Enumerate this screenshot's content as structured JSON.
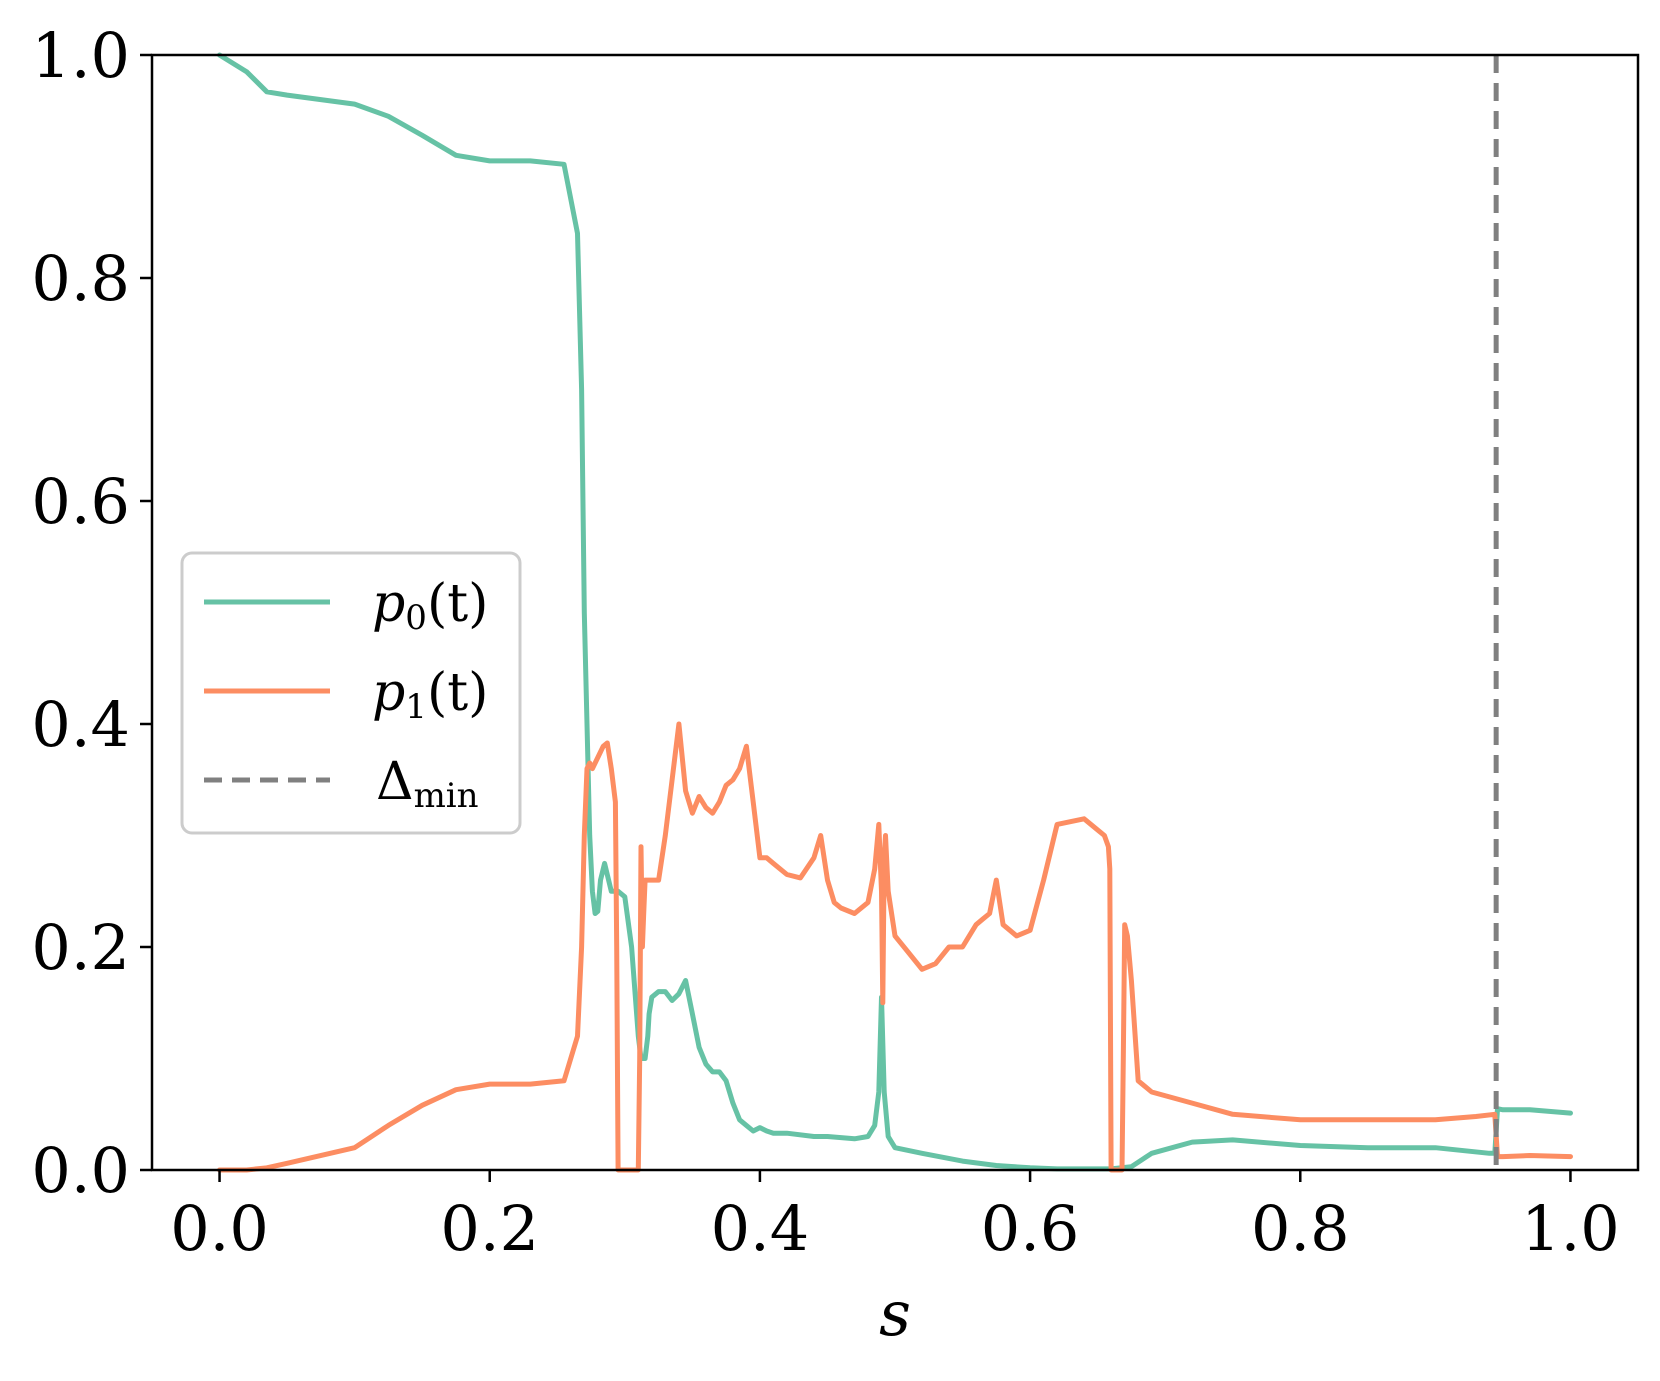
{
  "chart_data": {
    "type": "line",
    "xlabel": "s",
    "ylabel": "",
    "xlim": [
      -0.05,
      1.05
    ],
    "ylim": [
      0.0,
      1.0
    ],
    "x_ticks": [
      "0.0",
      "0.2",
      "0.4",
      "0.6",
      "0.8",
      "1.0"
    ],
    "y_ticks": [
      "0.0",
      "0.2",
      "0.4",
      "0.6",
      "0.8",
      "1.0"
    ],
    "grid": false,
    "legend_position": "center-left",
    "legend": {
      "p0": {
        "base": "p",
        "sub": "0",
        "suffix": "(t)"
      },
      "p1": {
        "base": "p",
        "sub": "1",
        "suffix": "(t)"
      },
      "delta": {
        "base": "Δ",
        "sub": "min",
        "suffix": ""
      }
    },
    "vline": {
      "x": 0.945,
      "color": "#808080",
      "style": "dashed"
    },
    "series": [
      {
        "key": "p0",
        "color": "#66c2a5",
        "x": [
          0.0,
          0.02,
          0.035,
          0.05,
          0.1,
          0.125,
          0.15,
          0.175,
          0.2,
          0.23,
          0.255,
          0.265,
          0.268,
          0.27,
          0.272,
          0.274,
          0.276,
          0.278,
          0.28,
          0.282,
          0.285,
          0.29,
          0.295,
          0.3,
          0.305,
          0.31,
          0.312,
          0.315,
          0.317,
          0.318,
          0.32,
          0.325,
          0.33,
          0.335,
          0.34,
          0.345,
          0.35,
          0.355,
          0.36,
          0.365,
          0.37,
          0.375,
          0.38,
          0.385,
          0.39,
          0.395,
          0.4,
          0.405,
          0.41,
          0.42,
          0.44,
          0.45,
          0.47,
          0.48,
          0.485,
          0.488,
          0.49,
          0.492,
          0.495,
          0.5,
          0.52,
          0.55,
          0.575,
          0.6,
          0.62,
          0.64,
          0.66,
          0.675,
          0.69,
          0.72,
          0.75,
          0.8,
          0.85,
          0.9,
          0.94,
          0.944,
          0.946,
          0.95,
          0.97,
          1.0
        ],
        "values": [
          1.0,
          0.985,
          0.967,
          0.964,
          0.956,
          0.945,
          0.928,
          0.91,
          0.905,
          0.905,
          0.902,
          0.84,
          0.7,
          0.5,
          0.4,
          0.3,
          0.25,
          0.23,
          0.232,
          0.26,
          0.275,
          0.25,
          0.25,
          0.245,
          0.2,
          0.12,
          0.1,
          0.1,
          0.12,
          0.14,
          0.155,
          0.16,
          0.16,
          0.152,
          0.158,
          0.17,
          0.14,
          0.11,
          0.095,
          0.088,
          0.088,
          0.08,
          0.06,
          0.045,
          0.04,
          0.035,
          0.038,
          0.035,
          0.033,
          0.033,
          0.03,
          0.03,
          0.028,
          0.03,
          0.04,
          0.07,
          0.155,
          0.07,
          0.03,
          0.02,
          0.015,
          0.008,
          0.004,
          0.002,
          0.001,
          0.001,
          0.001,
          0.003,
          0.015,
          0.025,
          0.027,
          0.022,
          0.02,
          0.02,
          0.015,
          0.015,
          0.055,
          0.054,
          0.054,
          0.051
        ]
      },
      {
        "key": "p1",
        "color": "#fc8d62",
        "x": [
          0.0,
          0.02,
          0.035,
          0.05,
          0.1,
          0.125,
          0.15,
          0.175,
          0.2,
          0.23,
          0.255,
          0.265,
          0.268,
          0.27,
          0.272,
          0.274,
          0.276,
          0.28,
          0.284,
          0.287,
          0.29,
          0.293,
          0.294,
          0.295,
          0.296,
          0.3,
          0.31,
          0.311,
          0.312,
          0.313,
          0.314,
          0.315,
          0.318,
          0.32,
          0.325,
          0.33,
          0.335,
          0.34,
          0.345,
          0.35,
          0.355,
          0.36,
          0.365,
          0.37,
          0.375,
          0.38,
          0.385,
          0.39,
          0.395,
          0.4,
          0.405,
          0.41,
          0.42,
          0.43,
          0.44,
          0.445,
          0.45,
          0.455,
          0.46,
          0.47,
          0.48,
          0.485,
          0.488,
          0.49,
          0.491,
          0.492,
          0.493,
          0.495,
          0.5,
          0.51,
          0.52,
          0.53,
          0.54,
          0.55,
          0.56,
          0.565,
          0.57,
          0.575,
          0.58,
          0.59,
          0.6,
          0.61,
          0.62,
          0.64,
          0.65,
          0.655,
          0.658,
          0.659,
          0.66,
          0.668,
          0.669,
          0.67,
          0.672,
          0.675,
          0.68,
          0.69,
          0.72,
          0.75,
          0.8,
          0.85,
          0.9,
          0.93,
          0.944,
          0.946,
          0.95,
          0.97,
          1.0
        ],
        "values": [
          0.0,
          0.0,
          0.002,
          0.006,
          0.02,
          0.04,
          0.058,
          0.072,
          0.077,
          0.077,
          0.08,
          0.12,
          0.2,
          0.3,
          0.36,
          0.365,
          0.36,
          0.37,
          0.38,
          0.383,
          0.36,
          0.33,
          0.2,
          0.0,
          0.0,
          0.0,
          0.0,
          0.1,
          0.29,
          0.2,
          0.23,
          0.26,
          0.26,
          0.26,
          0.26,
          0.3,
          0.35,
          0.4,
          0.34,
          0.32,
          0.335,
          0.325,
          0.32,
          0.33,
          0.345,
          0.35,
          0.36,
          0.38,
          0.33,
          0.28,
          0.28,
          0.275,
          0.265,
          0.262,
          0.28,
          0.3,
          0.26,
          0.24,
          0.235,
          0.23,
          0.24,
          0.27,
          0.31,
          0.25,
          0.15,
          0.28,
          0.3,
          0.25,
          0.21,
          0.195,
          0.18,
          0.185,
          0.2,
          0.2,
          0.22,
          0.225,
          0.23,
          0.26,
          0.22,
          0.21,
          0.215,
          0.26,
          0.31,
          0.315,
          0.305,
          0.3,
          0.29,
          0.27,
          0.0,
          0.0,
          0.1,
          0.22,
          0.21,
          0.17,
          0.08,
          0.07,
          0.06,
          0.05,
          0.045,
          0.045,
          0.045,
          0.048,
          0.05,
          0.012,
          0.012,
          0.013,
          0.012
        ]
      }
    ]
  }
}
